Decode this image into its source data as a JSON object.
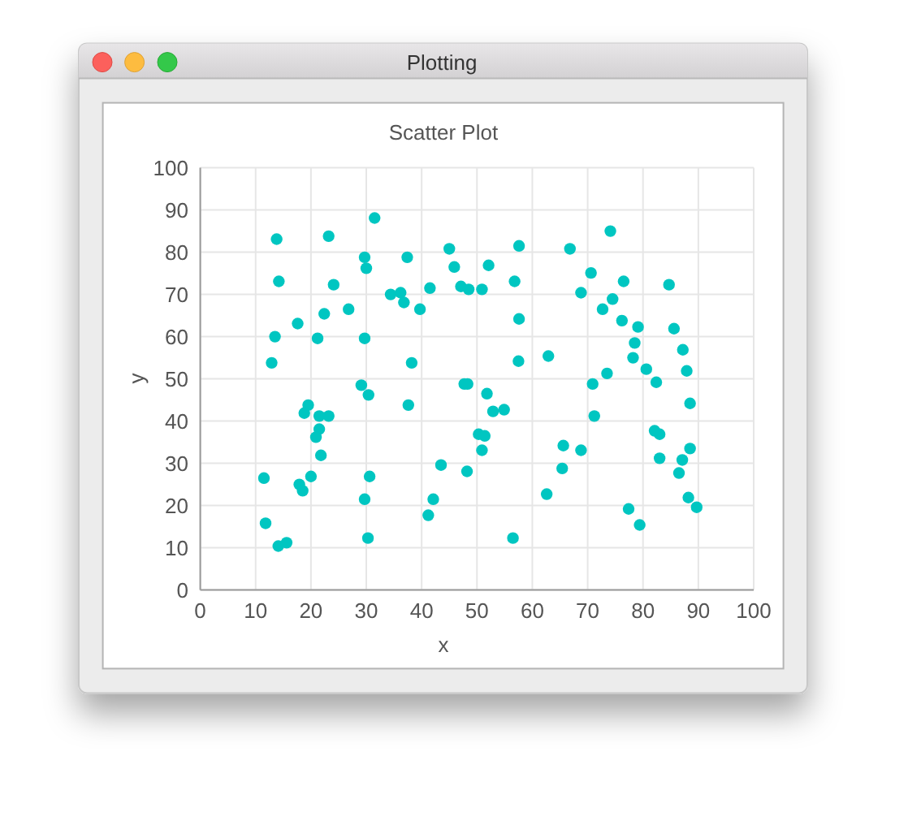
{
  "chart_data": {
    "type": "scatter",
    "title": "Scatter Plot",
    "xlabel": "x",
    "ylabel": "y",
    "annotations": [
      "Plotting"
    ],
    "x": [
      13.8,
      23.2,
      31.5,
      29.7,
      30.0,
      37.4,
      45.0,
      45.9,
      14.2,
      24.1,
      34.4,
      36.2,
      36.8,
      41.5,
      47.1,
      48.5,
      26.8,
      22.4,
      39.7,
      17.6,
      13.5,
      21.2,
      29.7,
      12.9,
      38.2,
      50.9,
      52.1,
      57.6,
      56.8,
      66.8,
      74.1,
      70.6,
      68.8,
      76.5,
      74.5,
      84.7,
      72.7,
      57.6,
      76.2,
      79.1,
      85.6,
      78.5,
      87.2,
      78.2,
      80.6,
      87.9,
      57.5,
      62.9,
      73.5,
      29.1,
      30.4,
      47.7,
      48.3,
      37.6,
      19.5,
      18.8,
      21.5,
      23.2,
      21.5,
      20.9,
      21.8,
      43.5,
      48.2,
      11.5,
      20.0,
      30.6,
      17.9,
      18.5,
      29.7,
      42.1,
      41.2,
      11.8,
      14.1,
      15.6,
      30.3,
      51.8,
      52.9,
      54.9,
      50.3,
      51.4,
      50.9,
      70.9,
      82.4,
      88.5,
      71.2,
      65.6,
      68.8,
      82.1,
      83.0,
      83.0,
      87.1,
      88.5,
      86.5,
      65.4,
      62.6,
      88.2,
      89.7,
      77.4,
      79.4,
      56.5
    ],
    "values": [
      83.1,
      83.8,
      88.1,
      78.8,
      76.2,
      78.8,
      80.8,
      76.5,
      73.1,
      72.3,
      70.0,
      70.4,
      68.1,
      71.5,
      71.9,
      71.2,
      66.5,
      65.4,
      66.5,
      63.1,
      60.0,
      59.6,
      59.6,
      53.8,
      53.8,
      71.2,
      76.9,
      81.5,
      73.1,
      80.8,
      85.0,
      75.1,
      70.4,
      73.1,
      68.9,
      72.3,
      66.5,
      64.2,
      63.8,
      62.3,
      61.9,
      58.5,
      56.9,
      55.0,
      52.3,
      51.9,
      54.2,
      55.4,
      51.3,
      48.5,
      46.2,
      48.8,
      48.8,
      43.8,
      43.8,
      41.9,
      41.2,
      41.2,
      38.1,
      36.2,
      31.9,
      29.6,
      28.1,
      26.5,
      26.9,
      26.9,
      25.0,
      23.5,
      21.5,
      21.5,
      17.7,
      15.8,
      10.4,
      11.2,
      12.3,
      46.5,
      42.3,
      42.7,
      36.9,
      36.5,
      33.1,
      48.8,
      49.2,
      44.2,
      41.2,
      34.2,
      33.1,
      37.7,
      36.9,
      31.2,
      30.8,
      33.5,
      27.7,
      28.8,
      22.7,
      21.9,
      19.6,
      19.2,
      15.4,
      12.3
    ],
    "color": "#00c6c1",
    "marker": "circle",
    "grid": true,
    "xlim": [
      0,
      100
    ],
    "ylim": [
      0,
      100
    ],
    "xticks": [
      0,
      10,
      20,
      30,
      40,
      50,
      60,
      70,
      80,
      90,
      100
    ],
    "yticks": [
      0,
      10,
      20,
      30,
      40,
      50,
      60,
      70,
      80,
      90,
      100
    ]
  }
}
